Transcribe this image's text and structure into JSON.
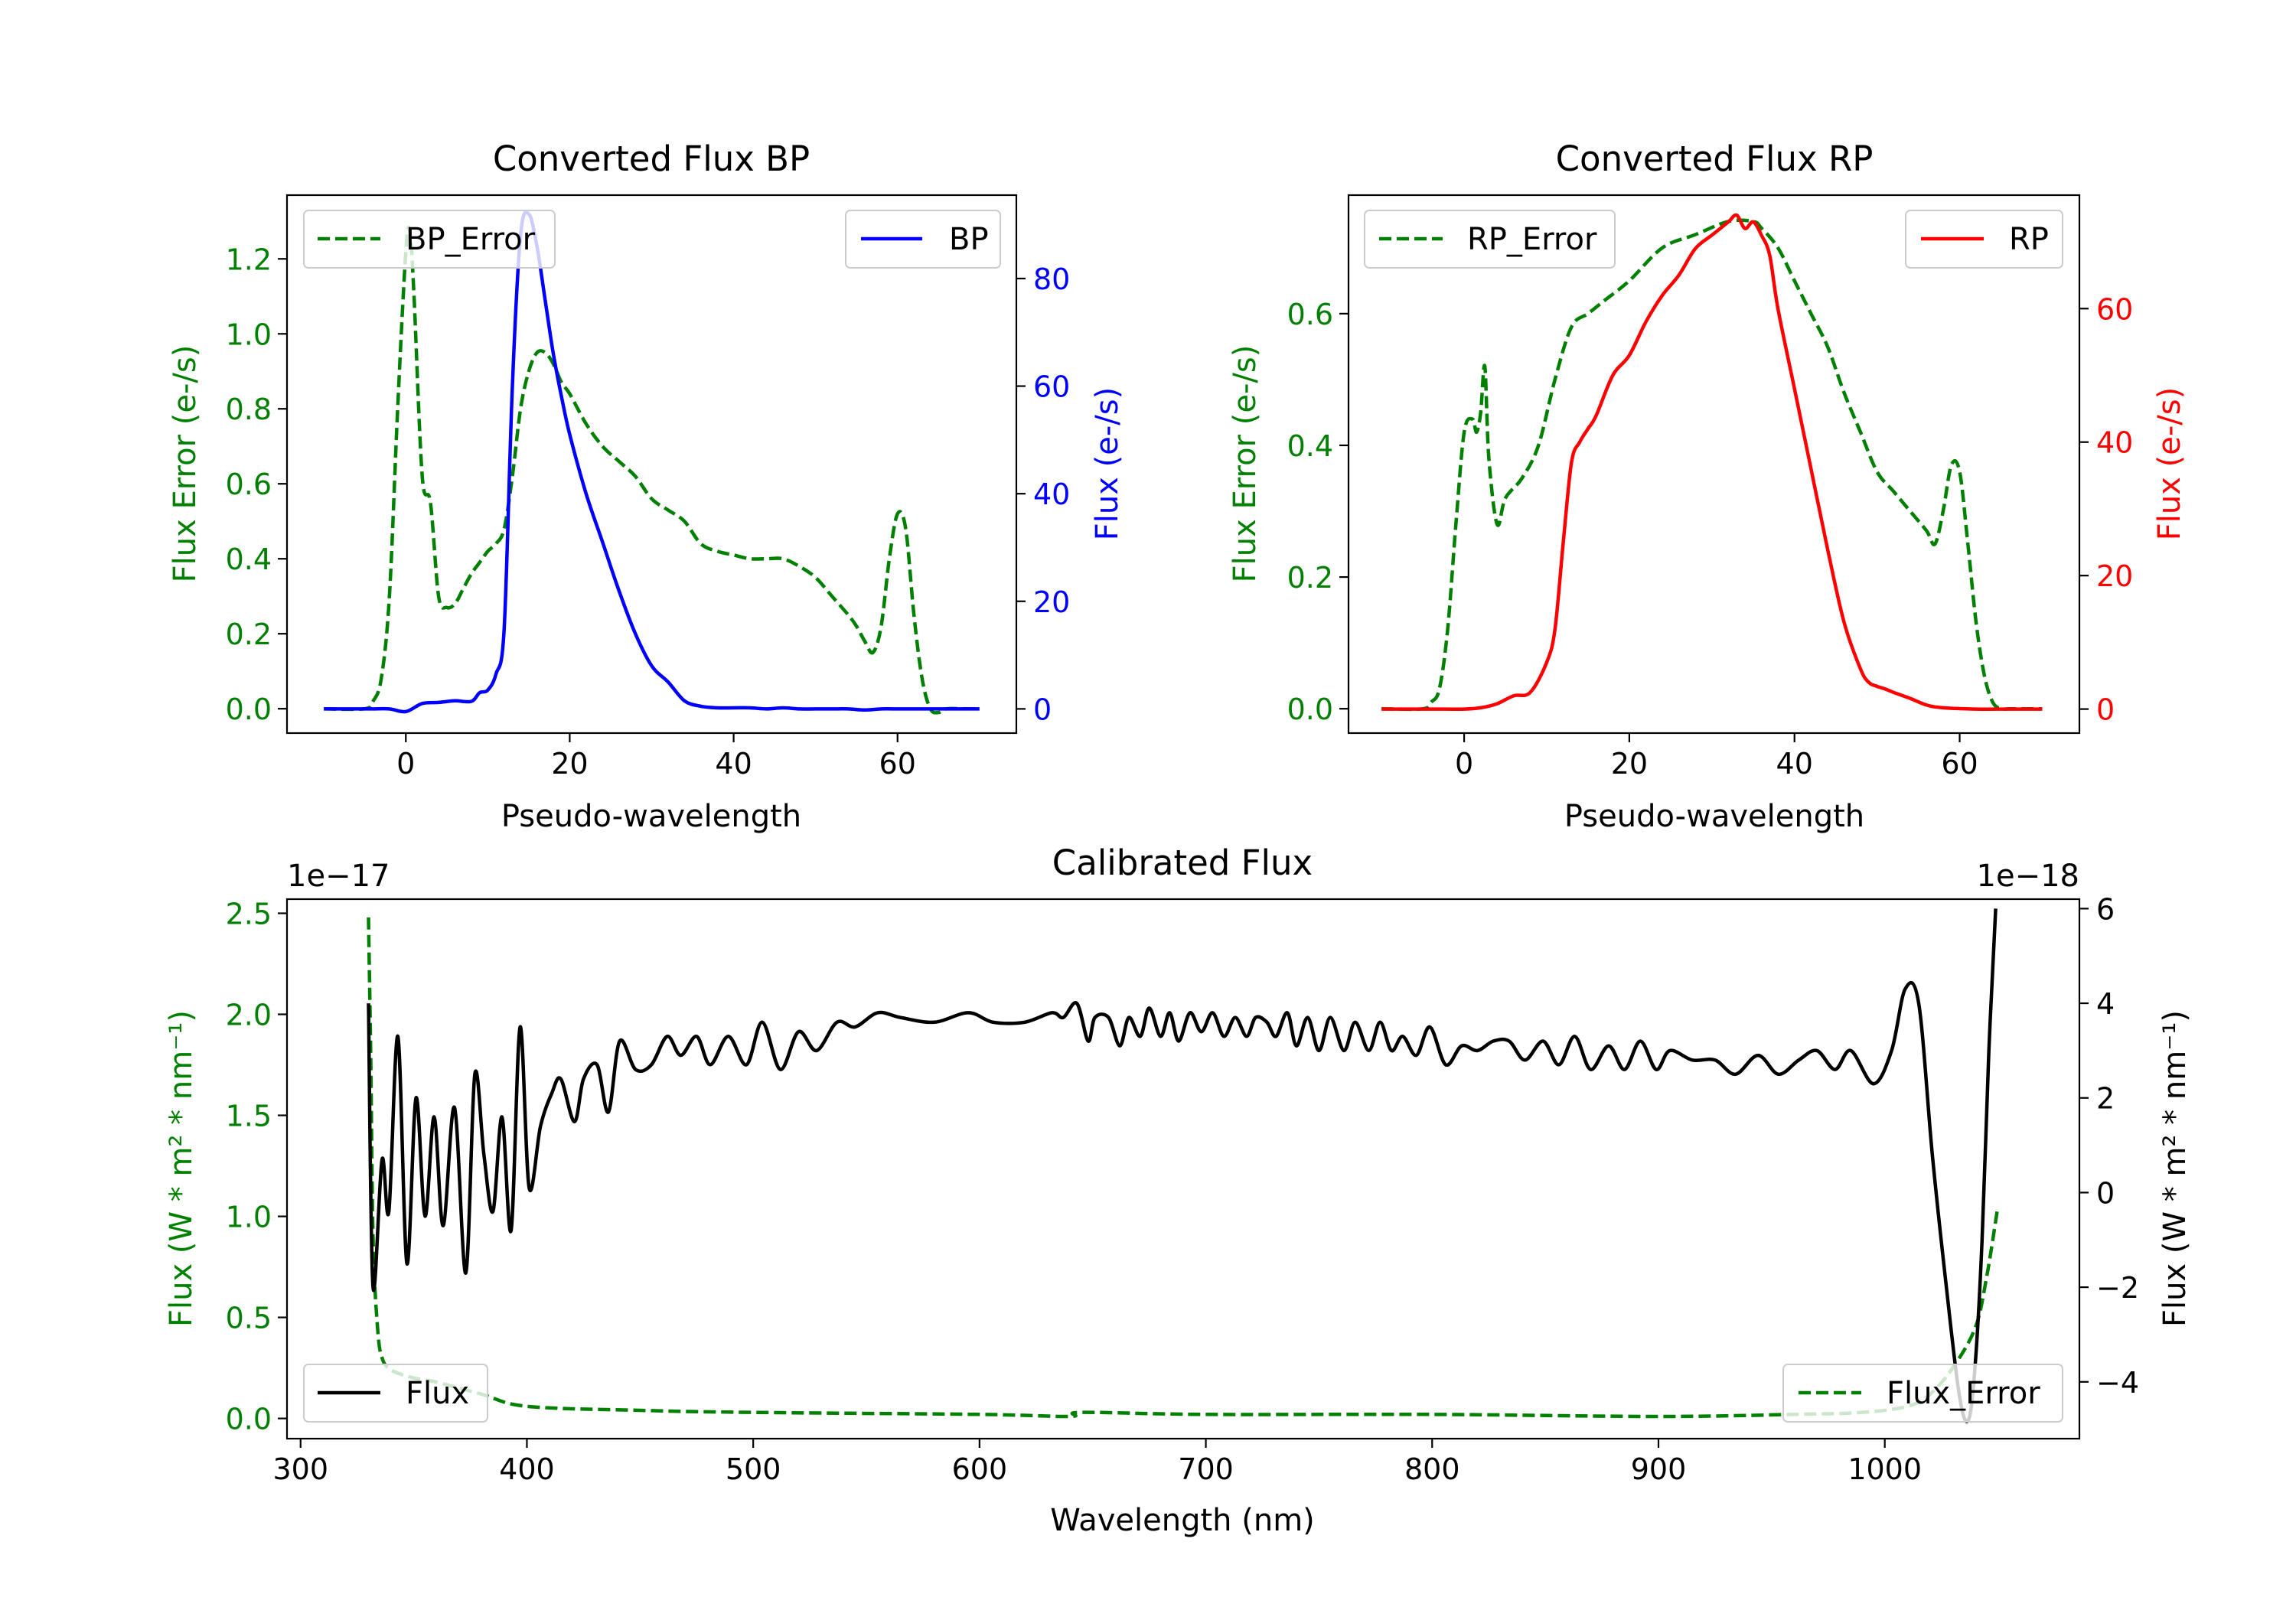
{
  "colors": {
    "bp": "#0000ff",
    "rp": "#ff0000",
    "err": "#008000",
    "flux": "#000000",
    "axis": "#000000"
  },
  "chart_data": [
    {
      "id": "bp",
      "type": "line",
      "title": "Converted Flux BP",
      "xlabel": "Pseudo-wavelength",
      "ylabel_left": "Flux Error (e-/s)",
      "ylabel_right": "Flux (e-/s)",
      "xlim": [
        -14.5,
        74.5
      ],
      "ylim_left": [
        -0.065,
        1.37
      ],
      "ylim_right": [
        -4.5,
        95.5
      ],
      "xticks": [
        0,
        20,
        40,
        60
      ],
      "yticks_left": [
        0.0,
        0.2,
        0.4,
        0.6,
        0.8,
        1.0,
        1.2
      ],
      "yticks_right": [
        0,
        20,
        40,
        60,
        80
      ],
      "legend_left": "BP_Error",
      "legend_right": "BP",
      "series": [
        {
          "name": "BP_Error",
          "axis": "left",
          "style": "dashed",
          "color_key": "err",
          "x": [
            -10,
            -5,
            -4,
            -3,
            -2,
            -1,
            0,
            0.5,
            1,
            2,
            3,
            4,
            5,
            6,
            7,
            8,
            9,
            10,
            11,
            12,
            13,
            14,
            15,
            16,
            17,
            18,
            19,
            20,
            22,
            24,
            26,
            28,
            30,
            32,
            34,
            36,
            38,
            40,
            42,
            44,
            46,
            48,
            50,
            52,
            54,
            55,
            56,
            57,
            58,
            59,
            60,
            61,
            62,
            63,
            64,
            65,
            66,
            68,
            70
          ],
          "y": [
            0.0,
            0.0,
            0.02,
            0.08,
            0.3,
            0.8,
            1.22,
            1.27,
            1.1,
            0.62,
            0.55,
            0.3,
            0.27,
            0.28,
            0.32,
            0.36,
            0.39,
            0.42,
            0.44,
            0.48,
            0.62,
            0.8,
            0.9,
            0.95,
            0.95,
            0.92,
            0.87,
            0.84,
            0.76,
            0.7,
            0.66,
            0.62,
            0.56,
            0.53,
            0.5,
            0.44,
            0.42,
            0.41,
            0.4,
            0.4,
            0.4,
            0.38,
            0.35,
            0.3,
            0.25,
            0.22,
            0.18,
            0.15,
            0.22,
            0.4,
            0.52,
            0.48,
            0.25,
            0.08,
            0.0,
            -0.01,
            0.0,
            0.0,
            0.0
          ]
        },
        {
          "name": "BP",
          "axis": "right",
          "style": "solid",
          "color_key": "bp",
          "x": [
            -10,
            -6,
            -4,
            -2,
            0,
            2,
            4,
            6,
            8,
            9,
            10,
            11,
            12,
            13,
            14,
            15,
            16,
            17,
            18,
            19,
            20,
            22,
            24,
            26,
            28,
            30,
            32,
            34,
            36,
            38,
            40,
            42,
            44,
            46,
            48,
            50,
            52,
            54,
            56,
            58,
            60,
            62,
            66,
            70
          ],
          "y": [
            0,
            0,
            0,
            0,
            -0.5,
            1,
            1.2,
            1.5,
            1.4,
            3,
            3.5,
            6.5,
            15,
            60,
            88,
            92,
            86,
            76,
            66,
            58,
            51,
            40,
            31,
            22,
            14,
            8,
            5,
            1.5,
            0.5,
            0.2,
            0.2,
            0.2,
            0,
            0.2,
            0,
            0,
            0,
            0,
            -0.2,
            0,
            0,
            0,
            0,
            0
          ]
        }
      ]
    },
    {
      "id": "rp",
      "type": "line",
      "title": "Converted Flux RP",
      "xlabel": "Pseudo-wavelength",
      "ylabel_left": "Flux Error (e-/s)",
      "ylabel_right": "Flux (e-/s)",
      "xlim": [
        -14,
        74.5
      ],
      "ylim_left": [
        -0.037,
        0.78
      ],
      "ylim_right": [
        -3.6,
        77
      ],
      "xticks": [
        0,
        20,
        40,
        60
      ],
      "yticks_left": [
        0.0,
        0.2,
        0.4,
        0.6
      ],
      "yticks_right": [
        0,
        20,
        40,
        60
      ],
      "legend_left": "RP_Error",
      "legend_right": "RP",
      "series": [
        {
          "name": "RP_Error",
          "axis": "left",
          "style": "dashed",
          "color_key": "err",
          "x": [
            -10,
            -5,
            -4,
            -3,
            -2,
            -1,
            0,
            1,
            1.5,
            2,
            2.5,
            3,
            4,
            5,
            7,
            9,
            11,
            13,
            15,
            17,
            20,
            24,
            28,
            32,
            35,
            36,
            38,
            40,
            42,
            44,
            46,
            48,
            50,
            52,
            54,
            56,
            57,
            58,
            59,
            60,
            61,
            62,
            63,
            64,
            65,
            66,
            68,
            70
          ],
          "y": [
            0.0,
            0.0,
            0.01,
            0.03,
            0.12,
            0.28,
            0.42,
            0.44,
            0.42,
            0.45,
            0.52,
            0.38,
            0.28,
            0.32,
            0.35,
            0.4,
            0.5,
            0.58,
            0.6,
            0.62,
            0.65,
            0.7,
            0.72,
            0.74,
            0.74,
            0.73,
            0.7,
            0.65,
            0.6,
            0.55,
            0.48,
            0.42,
            0.36,
            0.33,
            0.3,
            0.27,
            0.25,
            0.3,
            0.37,
            0.36,
            0.25,
            0.13,
            0.05,
            0.01,
            0.0,
            0.0,
            0.0,
            0.0
          ]
        },
        {
          "name": "RP",
          "axis": "right",
          "style": "solid",
          "color_key": "rp",
          "x": [
            -10,
            -4,
            0,
            2,
            4,
            6,
            8,
            10,
            11,
            12,
            13,
            14,
            15,
            16,
            18,
            20,
            22,
            24,
            26,
            28,
            30,
            31,
            32,
            33,
            34,
            35,
            36,
            37,
            38,
            40,
            42,
            44,
            46,
            48,
            49,
            50,
            51,
            52,
            54,
            56,
            58,
            62,
            66,
            70
          ],
          "y": [
            0,
            0,
            0,
            0.2,
            0.8,
            2,
            2.5,
            7,
            12,
            25,
            37,
            40,
            42,
            44,
            50,
            53,
            58,
            62,
            65,
            69,
            71,
            72,
            73,
            74,
            72,
            73,
            71,
            68,
            60,
            48,
            36,
            24,
            13,
            6,
            4,
            3.4,
            3,
            2.5,
            1.6,
            0.6,
            0.2,
            0,
            0,
            0
          ]
        }
      ]
    },
    {
      "id": "cal",
      "type": "line",
      "title": "Calibrated Flux",
      "xlabel": "Wavelength (nm)",
      "ylabel_left": "Flux (W * m² * nm⁻¹)",
      "ylabel_right": "Flux (W * m² * nm⁻¹)",
      "offset_left": "1e−17",
      "offset_right": "1e−18",
      "xlim": [
        294,
        1086
      ],
      "ylim_left": [
        -0.1,
        2.57
      ],
      "ylim_right": [
        -5.2,
        6.2
      ],
      "xticks": [
        300,
        400,
        500,
        600,
        700,
        800,
        900,
        1000
      ],
      "yticks_left": [
        0.0,
        0.5,
        1.0,
        1.5,
        2.0,
        2.5
      ],
      "yticks_right": [
        -4,
        -2,
        0,
        2,
        4,
        6
      ],
      "legend_left": "Flux",
      "legend_right": "Flux_Error",
      "series": [
        {
          "name": "Flux_Error",
          "axis": "left",
          "style": "dashed",
          "color_key": "err",
          "x": [
            330,
            331,
            332,
            334,
            336,
            340,
            350,
            360,
            380,
            400,
            450,
            500,
            600,
            640,
            645,
            700,
            800,
            900,
            960,
            990,
            1010,
            1020,
            1030,
            1040,
            1045,
            1050
          ],
          "y": [
            2.48,
            1.8,
            0.9,
            0.45,
            0.3,
            0.24,
            0.2,
            0.18,
            0.12,
            0.06,
            0.04,
            0.03,
            0.02,
            0.01,
            0.03,
            0.02,
            0.02,
            0.01,
            0.02,
            0.03,
            0.06,
            0.12,
            0.25,
            0.45,
            0.7,
            1.05
          ]
        },
        {
          "name": "Flux",
          "axis": "right",
          "style": "solid",
          "color_key": "flux",
          "x": [
            330,
            332,
            336,
            339,
            343,
            347,
            351,
            355,
            359,
            363,
            368,
            373,
            377,
            381,
            385,
            389,
            393,
            397,
            401,
            406,
            411,
            415,
            421,
            425,
            431,
            436,
            441,
            448,
            455,
            462,
            468,
            475,
            481,
            489,
            497,
            504,
            512,
            520,
            528,
            537,
            545,
            555,
            565,
            580,
            595,
            606,
            620,
            632,
            637,
            643,
            648,
            651,
            657,
            662,
            666,
            671,
            675,
            680,
            684,
            688,
            693,
            698,
            703,
            708,
            713,
            718,
            722,
            727,
            731,
            736,
            740,
            745,
            750,
            755,
            761,
            766,
            772,
            777,
            782,
            787,
            793,
            799,
            806,
            813,
            820,
            827,
            834,
            841,
            849,
            856,
            863,
            870,
            878,
            885,
            892,
            899,
            905,
            915,
            925,
            934,
            944,
            953,
            962,
            970,
            978,
            985,
            995,
            1003,
            1009,
            1015,
            1021,
            1027,
            1033,
            1037,
            1040,
            1043,
            1046,
            1049
          ],
          "y": [
            4,
            -2,
            0.7,
            -0.4,
            3.3,
            -1.5,
            2,
            -0.5,
            1.6,
            -0.7,
            1.8,
            -1.7,
            2.5,
            0.8,
            -0.4,
            1.6,
            -0.8,
            3.5,
            0.1,
            1.4,
            2.1,
            2.4,
            1.5,
            2.4,
            2.7,
            1.7,
            3.2,
            2.6,
            2.7,
            3.3,
            2.9,
            3.3,
            2.7,
            3.3,
            2.7,
            3.6,
            2.6,
            3.4,
            3.0,
            3.6,
            3.5,
            3.8,
            3.7,
            3.6,
            3.8,
            3.6,
            3.6,
            3.8,
            3.7,
            4.0,
            3.2,
            3.7,
            3.7,
            3.1,
            3.7,
            3.3,
            3.9,
            3.3,
            3.8,
            3.2,
            3.8,
            3.4,
            3.8,
            3.3,
            3.7,
            3.3,
            3.7,
            3.6,
            3.3,
            3.8,
            3.1,
            3.7,
            3.0,
            3.7,
            3.0,
            3.6,
            3.0,
            3.6,
            3.0,
            3.3,
            2.9,
            3.5,
            2.7,
            3.1,
            3.0,
            3.2,
            3.2,
            2.8,
            3.2,
            2.7,
            3.3,
            2.6,
            3.1,
            2.6,
            3.2,
            2.6,
            3.0,
            2.8,
            2.8,
            2.5,
            2.9,
            2.5,
            2.8,
            3.0,
            2.6,
            3.0,
            2.3,
            3.0,
            4.3,
            4.0,
            0.8,
            -1.9,
            -4.3,
            -4.8,
            -3.6,
            -1.0,
            3.0,
            6.0
          ]
        }
      ]
    }
  ]
}
